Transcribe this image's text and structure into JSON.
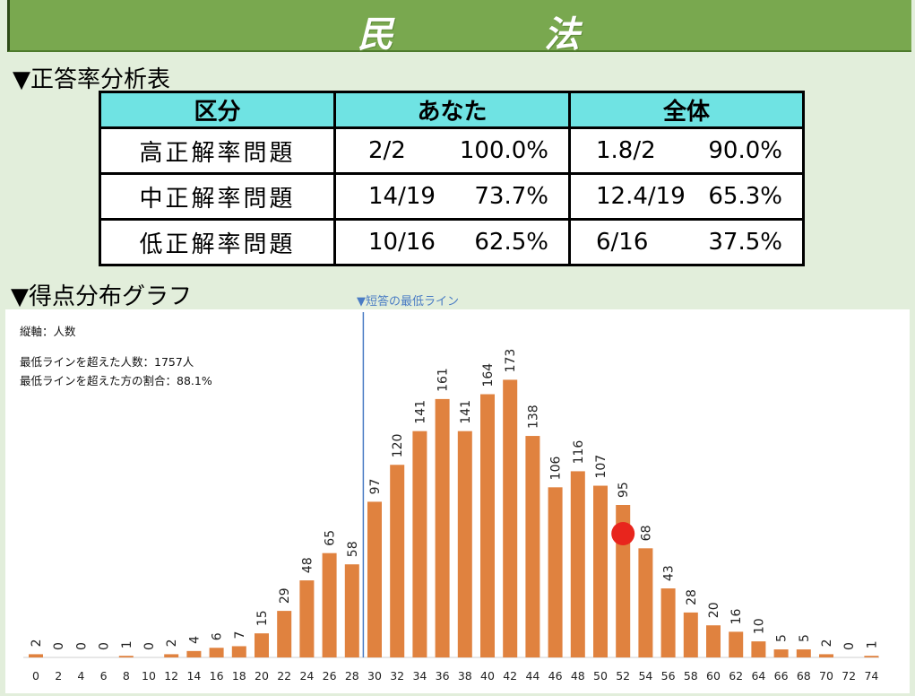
{
  "title": {
    "char1": "民",
    "char2": "法"
  },
  "table_section": {
    "heading": "▼正答率分析表"
  },
  "table": {
    "headers": [
      "区分",
      "あなた",
      "全体"
    ],
    "rows": [
      {
        "label": "高正解率問題",
        "you_score": "2/2",
        "you_rate": "100.0%",
        "all_score": "1.8/2",
        "all_rate": "90.0%"
      },
      {
        "label": "中正解率問題",
        "you_score": "14/19",
        "you_rate": "73.7%",
        "all_score": "12.4/19",
        "all_rate": "65.3%"
      },
      {
        "label": "低正解率問題",
        "you_score": "10/16",
        "you_rate": "62.5%",
        "all_score": "6/16",
        "all_rate": "37.5%"
      }
    ]
  },
  "graph_section": {
    "heading": "▼得点分布グラフ"
  },
  "min_line_label": "▼短答の最低ライン",
  "info": {
    "axis_note": "縦軸：人数",
    "above_count": "最低ラインを超えた人数：1757人",
    "above_ratio": "最低ラインを超えた方の割合：88.1%"
  },
  "chart_data": {
    "type": "bar",
    "categories": [
      "0",
      "2",
      "4",
      "6",
      "8",
      "10",
      "12",
      "14",
      "16",
      "18",
      "20",
      "22",
      "24",
      "26",
      "28",
      "30",
      "32",
      "34",
      "36",
      "38",
      "40",
      "42",
      "44",
      "46",
      "48",
      "50",
      "52",
      "54",
      "56",
      "58",
      "60",
      "62",
      "64",
      "66",
      "68",
      "70",
      "72",
      "74"
    ],
    "values": [
      2,
      0,
      0,
      0,
      1,
      0,
      2,
      4,
      6,
      7,
      15,
      29,
      48,
      65,
      58,
      97,
      120,
      141,
      161,
      141,
      164,
      173,
      138,
      106,
      116,
      107,
      95,
      68,
      43,
      28,
      20,
      16,
      10,
      5,
      5,
      2,
      0,
      1
    ],
    "ylim": [
      0,
      190
    ],
    "bar_color": "#e0823f",
    "min_line_score": "29",
    "min_line_color": "#4a7cc4",
    "marker_score": "52",
    "marker_color": "#e8251d",
    "xlabel": "",
    "ylabel": ""
  }
}
